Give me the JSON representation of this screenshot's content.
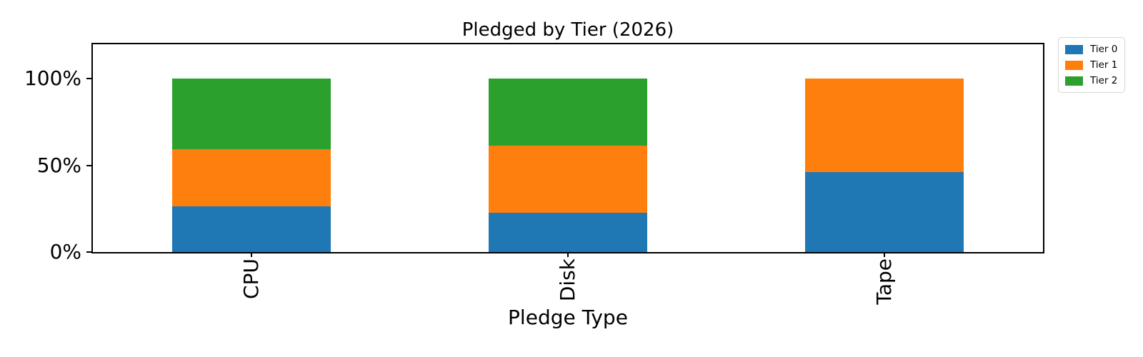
{
  "figure": {
    "background": "#ffffff"
  },
  "chart_data": {
    "type": "bar",
    "stacked": true,
    "orientation": "vertical",
    "title": "Pledged by Tier (2026)",
    "xlabel": "Pledge Type",
    "ylabel": "",
    "categories": [
      "CPU",
      "Disk",
      "Tape"
    ],
    "series": [
      {
        "name": "Tier 0",
        "color": "#1f77b4",
        "values": [
          26.5,
          22.6,
          46.1
        ]
      },
      {
        "name": "Tier 1",
        "color": "#ff7f0e",
        "values": [
          32.6,
          38.9,
          53.9
        ]
      },
      {
        "name": "Tier 2",
        "color": "#2ca02c",
        "values": [
          40.9,
          38.5,
          0.0
        ]
      }
    ],
    "y_ticks": [
      {
        "label": "0%",
        "value": 0
      },
      {
        "label": "50%",
        "value": 50
      },
      {
        "label": "100%",
        "value": 100
      }
    ],
    "ylim": [
      0,
      119.8
    ],
    "bar_rel_width": 0.5,
    "grid": false,
    "legend": {
      "position": "upper-right-outside",
      "entries": [
        "Tier 0",
        "Tier 1",
        "Tier 2"
      ]
    }
  }
}
